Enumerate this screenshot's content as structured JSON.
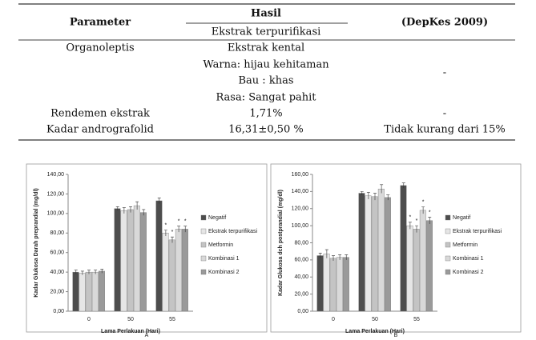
{
  "table": {
    "header": {
      "parameter": "Parameter",
      "hasil": "Hasil",
      "hasil_sub": "Ekstrak terpurifikasi",
      "standard": "(DepKes 2009)"
    },
    "rows": [
      {
        "parameter": "Organoleptis",
        "hasil": [
          "Ekstrak kental",
          "Warna: hijau kehitaman",
          "Bau : khas",
          "Rasa: Sangat pahit"
        ],
        "standard": "-"
      },
      {
        "parameter": "Rendemen ekstrak",
        "hasil": [
          "1,71%"
        ],
        "standard": "-"
      },
      {
        "parameter": "Kadar andrografolid",
        "hasil": [
          "16,31±0,50 %"
        ],
        "standard": "Tidak kurang dari 15%"
      }
    ]
  },
  "chart_data": [
    {
      "type": "bar",
      "caption": "A",
      "ylabel": "Kadar Glukosa Darah preprandial (mg/dl)",
      "xlabel": "Lama Perlakuan (Hari)",
      "categories": [
        "0",
        "50",
        "55"
      ],
      "legend": "right",
      "ylim": [
        0,
        140
      ],
      "yticks": [
        {
          "value": 0,
          "label": "0,00"
        },
        {
          "value": 20,
          "label": "20,00"
        },
        {
          "value": 40,
          "label": "40,00"
        },
        {
          "value": 60,
          "label": "60,00"
        },
        {
          "value": 80,
          "label": "80,00"
        },
        {
          "value": 100,
          "label": "100,00"
        },
        {
          "value": 120,
          "label": "120,00"
        },
        {
          "value": 140,
          "label": "140,00"
        }
      ],
      "series": [
        {
          "name": "Negatif",
          "color": "#4d4d4d",
          "values": [
            40,
            105,
            113
          ],
          "errors": [
            2,
            2,
            3
          ],
          "markers": [
            null,
            null,
            null
          ]
        },
        {
          "name": "Ekstrak terpurifikasi",
          "color": "#e6e6e6",
          "values": [
            39,
            103,
            80
          ],
          "errors": [
            2,
            3,
            3
          ],
          "markers": [
            null,
            null,
            "*"
          ]
        },
        {
          "name": "Metformin",
          "color": "#c4c4c4",
          "values": [
            40,
            104,
            73
          ],
          "errors": [
            2,
            3,
            3
          ],
          "markers": [
            null,
            null,
            "*"
          ]
        },
        {
          "name": "Kombinasi 1",
          "color": "#d9d9d9",
          "values": [
            40,
            108,
            84
          ],
          "errors": [
            2,
            4,
            3
          ],
          "markers": [
            null,
            null,
            "*"
          ]
        },
        {
          "name": "Kombinasi 2",
          "color": "#9a9a9a",
          "values": [
            41,
            101,
            84
          ],
          "errors": [
            2,
            3,
            3
          ],
          "markers": [
            null,
            null,
            "*"
          ]
        }
      ]
    },
    {
      "type": "bar",
      "caption": "B",
      "ylabel": "Kadar Glukosa dch postprandial (mg/dl)",
      "xlabel": "Lama Perlakuan (Hari)",
      "categories": [
        "0",
        "50",
        "55"
      ],
      "legend": "right",
      "ylim": [
        0,
        160
      ],
      "yticks": [
        {
          "value": 0,
          "label": "0,00"
        },
        {
          "value": 20,
          "label": "20,00"
        },
        {
          "value": 40,
          "label": "40,00"
        },
        {
          "value": 60,
          "label": "60,00"
        },
        {
          "value": 80,
          "label": "80,00"
        },
        {
          "value": 100,
          "label": "100,00"
        },
        {
          "value": 120,
          "label": "120,00"
        },
        {
          "value": 140,
          "label": "140,00"
        },
        {
          "value": 160,
          "label": "160,00"
        }
      ],
      "series": [
        {
          "name": "Negatif",
          "color": "#4d4d4d",
          "values": [
            65,
            138,
            147
          ],
          "errors": [
            3,
            2,
            3
          ],
          "markers": [
            null,
            null,
            null
          ]
        },
        {
          "name": "Ekstrak terpurifikasi",
          "color": "#e6e6e6",
          "values": [
            67,
            135,
            100
          ],
          "errors": [
            5,
            4,
            4
          ],
          "markers": [
            null,
            null,
            "*"
          ]
        },
        {
          "name": "Metformin",
          "color": "#c4c4c4",
          "values": [
            62,
            134,
            96
          ],
          "errors": [
            3,
            4,
            4
          ],
          "markers": [
            null,
            null,
            "*"
          ]
        },
        {
          "name": "Kombinasi 1",
          "color": "#d9d9d9",
          "values": [
            63,
            143,
            118
          ],
          "errors": [
            3,
            5,
            4
          ],
          "markers": [
            null,
            null,
            "*"
          ]
        },
        {
          "name": "Kombinasi 2",
          "color": "#9a9a9a",
          "values": [
            63,
            133,
            106
          ],
          "errors": [
            3,
            3,
            4
          ],
          "markers": [
            null,
            null,
            "*"
          ]
        }
      ]
    }
  ]
}
